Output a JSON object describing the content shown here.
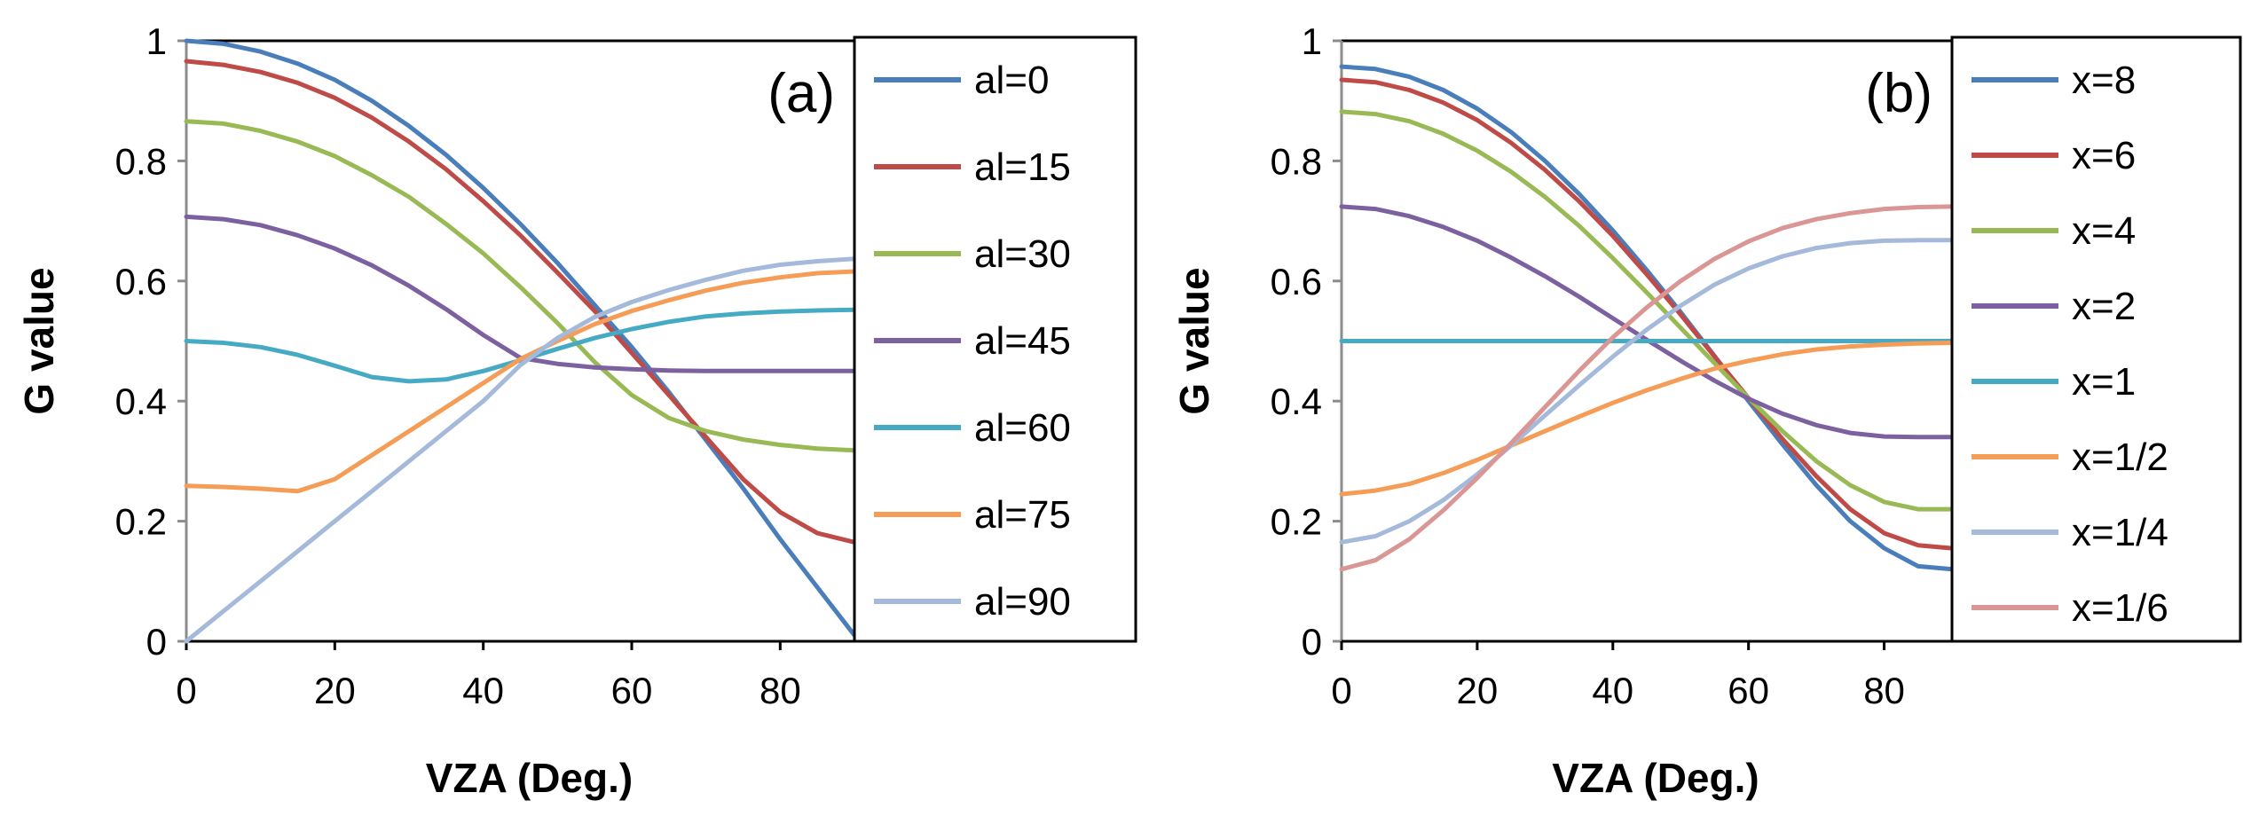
{
  "chart_data": [
    {
      "type": "line",
      "panel_label": "(a)",
      "xlabel": "VZA (Deg.)",
      "ylabel": "G value",
      "xlim": [
        0,
        90
      ],
      "ylim": [
        0,
        1
      ],
      "xticks": [
        "0",
        "20",
        "40",
        "60",
        "80"
      ],
      "yticks": [
        "0",
        "0.2",
        "0.4",
        "0.6",
        "0.8",
        "1"
      ],
      "x": [
        0,
        5,
        10,
        15,
        20,
        25,
        30,
        35,
        40,
        45,
        50,
        55,
        60,
        65,
        70,
        75,
        80,
        85,
        90
      ],
      "series": [
        {
          "name": "al=0",
          "color": "#4a7ebb",
          "values": [
            1.0,
            0.995,
            0.982,
            0.962,
            0.935,
            0.9,
            0.858,
            0.81,
            0.755,
            0.695,
            0.63,
            0.56,
            0.49,
            0.415,
            0.335,
            0.255,
            0.17,
            0.09,
            0.01
          ]
        },
        {
          "name": "al=15",
          "color": "#be4b48",
          "values": [
            0.966,
            0.96,
            0.948,
            0.93,
            0.905,
            0.872,
            0.832,
            0.786,
            0.733,
            0.676,
            0.614,
            0.55,
            0.48,
            0.41,
            0.34,
            0.27,
            0.215,
            0.18,
            0.165
          ]
        },
        {
          "name": "al=30",
          "color": "#98b954",
          "values": [
            0.866,
            0.862,
            0.85,
            0.832,
            0.808,
            0.776,
            0.74,
            0.695,
            0.646,
            0.59,
            0.53,
            0.465,
            0.41,
            0.372,
            0.35,
            0.336,
            0.327,
            0.321,
            0.318
          ]
        },
        {
          "name": "al=45",
          "color": "#7d60a0",
          "values": [
            0.707,
            0.703,
            0.693,
            0.676,
            0.654,
            0.626,
            0.592,
            0.553,
            0.51,
            0.472,
            0.462,
            0.456,
            0.453,
            0.451,
            0.45,
            0.45,
            0.45,
            0.45,
            0.45
          ]
        },
        {
          "name": "al=60",
          "color": "#46aac5",
          "values": [
            0.5,
            0.497,
            0.49,
            0.477,
            0.459,
            0.44,
            0.433,
            0.436,
            0.45,
            0.468,
            0.487,
            0.505,
            0.52,
            0.532,
            0.541,
            0.546,
            0.549,
            0.551,
            0.552
          ]
        },
        {
          "name": "al=75",
          "color": "#f59d56",
          "values": [
            0.259,
            0.257,
            0.254,
            0.25,
            0.27,
            0.31,
            0.35,
            0.39,
            0.43,
            0.47,
            0.5,
            0.528,
            0.55,
            0.568,
            0.584,
            0.597,
            0.606,
            0.613,
            0.616
          ]
        },
        {
          "name": "al=90",
          "color": "#a5b9db",
          "values": [
            0.0,
            0.05,
            0.1,
            0.15,
            0.2,
            0.25,
            0.3,
            0.35,
            0.4,
            0.46,
            0.505,
            0.54,
            0.565,
            0.585,
            0.602,
            0.617,
            0.627,
            0.633,
            0.637
          ]
        }
      ]
    },
    {
      "type": "line",
      "panel_label": "(b)",
      "xlabel": "VZA (Deg.)",
      "ylabel": "G value",
      "xlim": [
        0,
        90
      ],
      "ylim": [
        0,
        1
      ],
      "xticks": [
        "0",
        "20",
        "40",
        "60",
        "80"
      ],
      "yticks": [
        "0",
        "0.2",
        "0.4",
        "0.6",
        "0.8",
        "1"
      ],
      "x": [
        0,
        5,
        10,
        15,
        20,
        25,
        30,
        35,
        40,
        45,
        50,
        55,
        60,
        65,
        70,
        75,
        80,
        85,
        90
      ],
      "series": [
        {
          "name": "x=8",
          "color": "#4a7ebb",
          "values": [
            0.957,
            0.953,
            0.94,
            0.918,
            0.887,
            0.848,
            0.8,
            0.745,
            0.684,
            0.618,
            0.548,
            0.475,
            0.4,
            0.328,
            0.26,
            0.2,
            0.155,
            0.125,
            0.12
          ]
        },
        {
          "name": "x=6",
          "color": "#be4b48",
          "values": [
            0.935,
            0.931,
            0.918,
            0.897,
            0.868,
            0.83,
            0.785,
            0.733,
            0.675,
            0.611,
            0.544,
            0.474,
            0.405,
            0.337,
            0.275,
            0.22,
            0.18,
            0.16,
            0.155
          ]
        },
        {
          "name": "x=4",
          "color": "#98b954",
          "values": [
            0.882,
            0.878,
            0.866,
            0.845,
            0.817,
            0.782,
            0.74,
            0.692,
            0.638,
            0.581,
            0.522,
            0.463,
            0.405,
            0.35,
            0.3,
            0.26,
            0.232,
            0.22,
            0.22
          ]
        },
        {
          "name": "x=2",
          "color": "#7d60a0",
          "values": [
            0.724,
            0.72,
            0.708,
            0.69,
            0.667,
            0.639,
            0.608,
            0.574,
            0.538,
            0.502,
            0.467,
            0.434,
            0.404,
            0.379,
            0.36,
            0.347,
            0.341,
            0.34,
            0.34
          ]
        },
        {
          "name": "x=1",
          "color": "#46aac5",
          "values": [
            0.5,
            0.5,
            0.5,
            0.5,
            0.5,
            0.5,
            0.5,
            0.5,
            0.5,
            0.5,
            0.5,
            0.5,
            0.5,
            0.5,
            0.5,
            0.5,
            0.5,
            0.5,
            0.5
          ]
        },
        {
          "name": "x=1/2",
          "color": "#f59d56",
          "values": [
            0.245,
            0.251,
            0.262,
            0.28,
            0.302,
            0.326,
            0.35,
            0.374,
            0.397,
            0.418,
            0.437,
            0.454,
            0.467,
            0.478,
            0.486,
            0.491,
            0.494,
            0.496,
            0.497
          ]
        },
        {
          "name": "x=1/4",
          "color": "#a5b9db",
          "values": [
            0.165,
            0.175,
            0.2,
            0.235,
            0.278,
            0.326,
            0.376,
            0.426,
            0.474,
            0.519,
            0.559,
            0.594,
            0.621,
            0.641,
            0.655,
            0.663,
            0.667,
            0.668,
            0.668
          ]
        },
        {
          "name": "x=1/6",
          "color": "#d99694",
          "values": [
            0.12,
            0.135,
            0.17,
            0.218,
            0.272,
            0.33,
            0.39,
            0.45,
            0.506,
            0.556,
            0.6,
            0.637,
            0.666,
            0.688,
            0.703,
            0.713,
            0.72,
            0.723,
            0.724
          ]
        }
      ]
    }
  ]
}
